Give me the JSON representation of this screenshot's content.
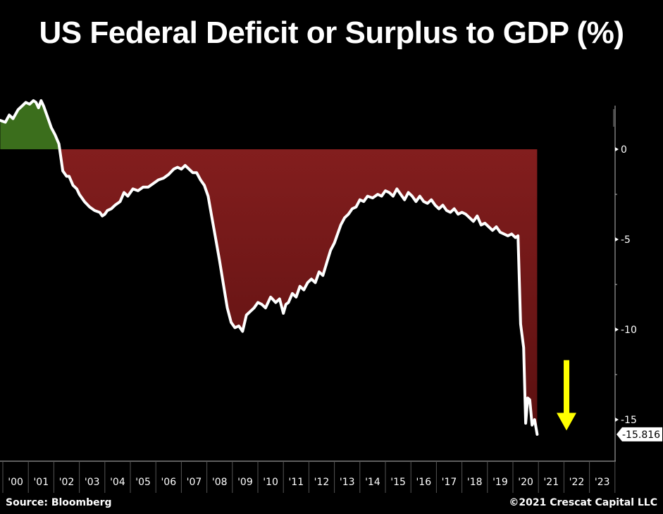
{
  "chart_data": {
    "type": "area",
    "title": "US Federal Deficit or Surplus to GDP (%)",
    "xlabel": "",
    "ylabel": "",
    "ylim": [
      -17.5,
      2.5
    ],
    "xlim": [
      2000,
      2024
    ],
    "yticks": [
      0,
      -5,
      -10,
      -15
    ],
    "ytick_labels": [
      "0",
      "-5",
      "-10",
      "-15"
    ],
    "xtick_labels": [
      "'00",
      "'01",
      "'02",
      "'03",
      "'04",
      "'05",
      "'06",
      "'07",
      "'08",
      "'09",
      "'10",
      "'11",
      "'12",
      "'13",
      "'14",
      "'15",
      "'16",
      "'17",
      "'18",
      "'19",
      "'20",
      "'21",
      "'22",
      "'23"
    ],
    "last_value_label": "-15.816",
    "grid": false,
    "colors": {
      "surplus": "#3b6e1c",
      "deficit_top": "#8a2020",
      "deficit_bottom": "#5a1010",
      "line": "#ffffff",
      "arrow": "#ffff00"
    },
    "series": [
      {
        "name": "US Federal Deficit or Surplus to GDP",
        "x": [
          1999.9,
          2000.1,
          2000.25,
          2000.4,
          2000.6,
          2000.75,
          2000.9,
          2001.05,
          2001.2,
          2001.3,
          2001.4,
          2001.5,
          2001.6,
          2001.75,
          2001.9,
          2002.05,
          2002.2,
          2002.35,
          2002.5,
          2002.6,
          2002.75,
          2002.9,
          2003.0,
          2003.2,
          2003.4,
          2003.6,
          2003.8,
          2003.9,
          2004.0,
          2004.1,
          2004.25,
          2004.4,
          2004.6,
          2004.75,
          2004.9,
          2005.1,
          2005.3,
          2005.5,
          2005.7,
          2005.9,
          2006.1,
          2006.3,
          2006.5,
          2006.7,
          2006.85,
          2007.0,
          2007.15,
          2007.3,
          2007.45,
          2007.6,
          2007.75,
          2007.9,
          2008.05,
          2008.2,
          2008.35,
          2008.5,
          2008.65,
          2008.8,
          2008.95,
          2009.1,
          2009.25,
          2009.4,
          2009.55,
          2009.7,
          2009.85,
          2010.0,
          2010.15,
          2010.3,
          2010.5,
          2010.7,
          2010.85,
          2011.0,
          2011.1,
          2011.2,
          2011.35,
          2011.5,
          2011.65,
          2011.8,
          2011.95,
          2012.1,
          2012.25,
          2012.4,
          2012.55,
          2012.7,
          2012.85,
          2013.0,
          2013.1,
          2013.25,
          2013.4,
          2013.55,
          2013.7,
          2013.85,
          2014.0,
          2014.15,
          2014.3,
          2014.5,
          2014.7,
          2014.85,
          2015.0,
          2015.15,
          2015.3,
          2015.45,
          2015.6,
          2015.75,
          2015.9,
          2016.05,
          2016.2,
          2016.35,
          2016.5,
          2016.65,
          2016.8,
          2016.95,
          2017.1,
          2017.25,
          2017.4,
          2017.55,
          2017.7,
          2017.85,
          2018.0,
          2018.15,
          2018.3,
          2018.45,
          2018.6,
          2018.75,
          2018.9,
          2019.05,
          2019.2,
          2019.35,
          2019.5,
          2019.65,
          2019.8,
          2019.95,
          2020.1,
          2020.2,
          2020.3,
          2020.42,
          2020.5,
          2020.58,
          2020.66,
          2020.75,
          2020.85,
          2020.95
        ],
        "y": [
          1.6,
          1.5,
          1.9,
          1.7,
          2.2,
          2.4,
          2.6,
          2.5,
          2.7,
          2.6,
          2.3,
          2.7,
          2.4,
          1.8,
          1.2,
          0.8,
          0.3,
          -1.2,
          -1.5,
          -1.5,
          -2.0,
          -2.2,
          -2.5,
          -2.9,
          -3.2,
          -3.4,
          -3.5,
          -3.7,
          -3.6,
          -3.4,
          -3.3,
          -3.1,
          -2.9,
          -2.4,
          -2.6,
          -2.2,
          -2.3,
          -2.1,
          -2.1,
          -1.9,
          -1.7,
          -1.6,
          -1.4,
          -1.1,
          -1.0,
          -1.1,
          -0.9,
          -1.1,
          -1.3,
          -1.3,
          -1.7,
          -2.0,
          -2.6,
          -3.8,
          -5.0,
          -6.2,
          -7.5,
          -8.8,
          -9.6,
          -9.9,
          -9.8,
          -10.1,
          -9.2,
          -9.0,
          -8.8,
          -8.5,
          -8.6,
          -8.8,
          -8.2,
          -8.5,
          -8.3,
          -9.1,
          -8.6,
          -8.5,
          -8.0,
          -8.2,
          -7.6,
          -7.8,
          -7.4,
          -7.2,
          -7.4,
          -6.8,
          -7.0,
          -6.3,
          -5.6,
          -5.2,
          -4.8,
          -4.2,
          -3.8,
          -3.6,
          -3.3,
          -3.2,
          -2.8,
          -2.9,
          -2.6,
          -2.7,
          -2.5,
          -2.6,
          -2.3,
          -2.4,
          -2.6,
          -2.2,
          -2.5,
          -2.8,
          -2.4,
          -2.6,
          -2.9,
          -2.6,
          -2.9,
          -3.0,
          -2.8,
          -3.1,
          -3.3,
          -3.1,
          -3.4,
          -3.5,
          -3.3,
          -3.6,
          -3.5,
          -3.6,
          -3.8,
          -4.0,
          -3.7,
          -4.2,
          -4.1,
          -4.3,
          -4.5,
          -4.3,
          -4.6,
          -4.7,
          -4.8,
          -4.7,
          -4.9,
          -4.8,
          -9.7,
          -11.0,
          -15.2,
          -13.8,
          -13.9,
          -15.3,
          -15.0,
          -15.816
        ]
      }
    ],
    "annotations": [
      {
        "type": "arrow",
        "direction": "down",
        "color": "#ffff00",
        "x": 2022.1,
        "y_from": -11.7,
        "y_to": -15.6
      }
    ]
  },
  "footer": {
    "source": "Source: Bloomberg",
    "copyright": "©2021 Crescat Capital LLC"
  }
}
